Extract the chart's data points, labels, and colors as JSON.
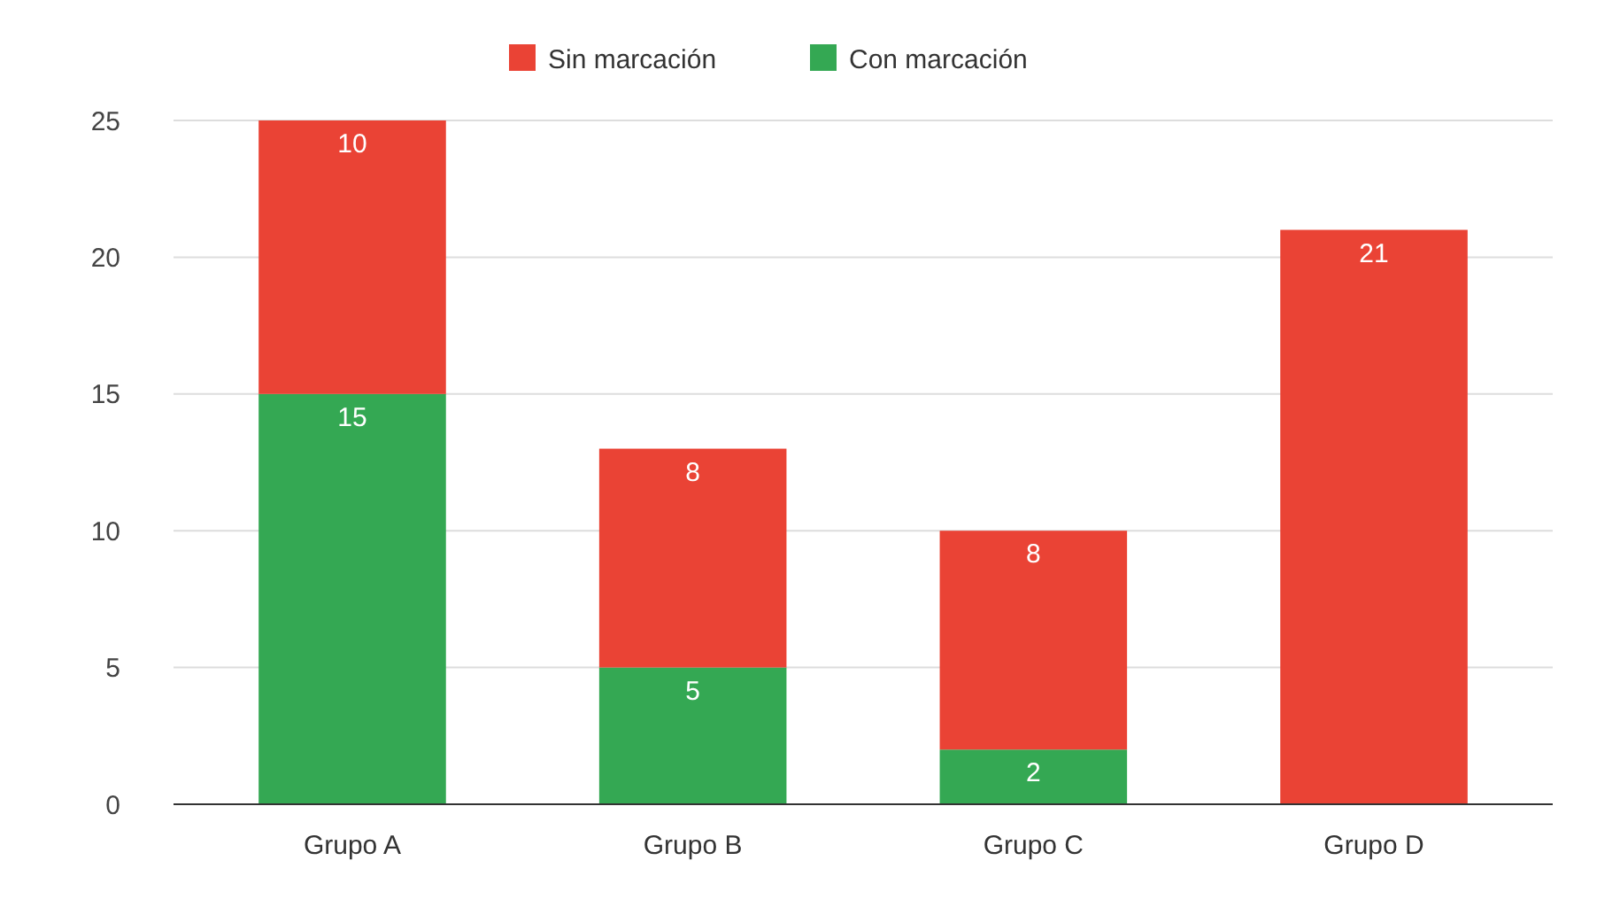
{
  "chart_data": {
    "type": "bar",
    "stacked": true,
    "categories": [
      "Grupo A",
      "Grupo B",
      "Grupo C",
      "Grupo D"
    ],
    "series": [
      {
        "name": "Con marcación",
        "color": "#34a853",
        "values": [
          15,
          5,
          2,
          null
        ]
      },
      {
        "name": "Sin marcación",
        "color": "#ea4335",
        "values": [
          10,
          8,
          8,
          21
        ]
      }
    ],
    "ylim": [
      0,
      25
    ],
    "yticks": [
      0,
      5,
      10,
      15,
      20,
      25
    ],
    "grid": "y",
    "legend": "top",
    "data_labels": true
  }
}
